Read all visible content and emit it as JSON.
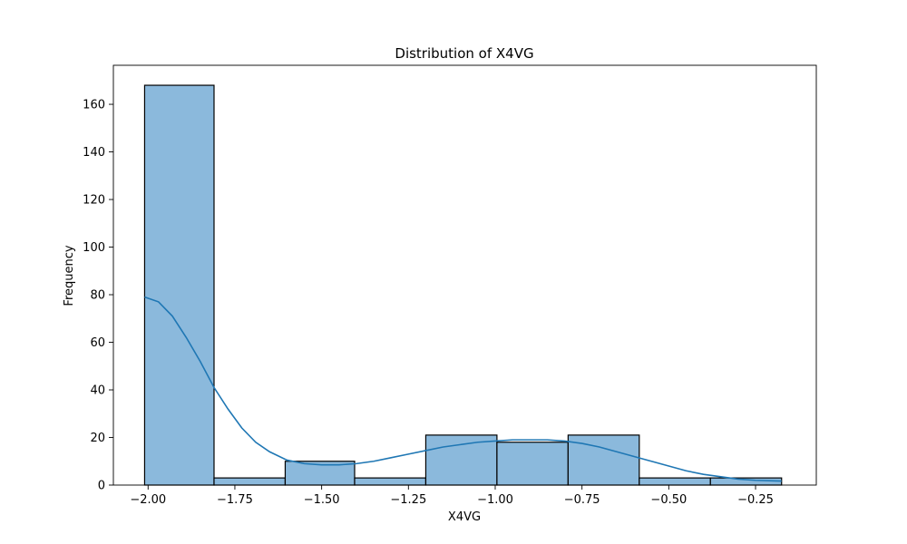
{
  "chart_data": {
    "type": "bar",
    "subtype": "histogram-with-kde",
    "title": "Distribution of X4VG",
    "xlabel": "X4VG",
    "ylabel": "Frequency",
    "xlim": [
      -2.1,
      -0.075
    ],
    "ylim": [
      0,
      176.4
    ],
    "x_ticks": [
      -2.0,
      -1.75,
      -1.5,
      -1.25,
      -1.0,
      -0.75,
      -0.5,
      -0.25
    ],
    "x_tick_labels": [
      "−2.00",
      "−1.75",
      "−1.50",
      "−1.25",
      "−1.00",
      "−0.75",
      "−0.50",
      "−0.25"
    ],
    "y_ticks": [
      0,
      20,
      40,
      60,
      80,
      100,
      120,
      140,
      160
    ],
    "y_tick_labels": [
      "0",
      "20",
      "40",
      "60",
      "80",
      "100",
      "120",
      "140",
      "160"
    ],
    "bins": [
      {
        "x0": -2.01,
        "x1": -1.81,
        "count": 168
      },
      {
        "x0": -1.81,
        "x1": -1.605,
        "count": 3
      },
      {
        "x0": -1.605,
        "x1": -1.405,
        "count": 10
      },
      {
        "x0": -1.405,
        "x1": -1.2,
        "count": 3
      },
      {
        "x0": -1.2,
        "x1": -0.995,
        "count": 21
      },
      {
        "x0": -0.995,
        "x1": -0.79,
        "count": 18
      },
      {
        "x0": -0.79,
        "x1": -0.585,
        "count": 21
      },
      {
        "x0": -0.585,
        "x1": -0.38,
        "count": 3
      },
      {
        "x0": -0.38,
        "x1": -0.175,
        "count": 3
      }
    ],
    "kde": {
      "x": [
        -2.01,
        -1.97,
        -1.93,
        -1.89,
        -1.85,
        -1.81,
        -1.77,
        -1.73,
        -1.69,
        -1.65,
        -1.6,
        -1.55,
        -1.5,
        -1.45,
        -1.4,
        -1.35,
        -1.3,
        -1.25,
        -1.2,
        -1.15,
        -1.1,
        -1.05,
        -1.0,
        -0.95,
        -0.9,
        -0.85,
        -0.8,
        -0.75,
        -0.7,
        -0.65,
        -0.6,
        -0.55,
        -0.5,
        -0.45,
        -0.4,
        -0.35,
        -0.3,
        -0.25,
        -0.2,
        -0.175
      ],
      "y": [
        79,
        77,
        71,
        62,
        52,
        41,
        32,
        24,
        18,
        14,
        10.5,
        9,
        8.5,
        8.5,
        9,
        10,
        11.5,
        13,
        14.5,
        16,
        17,
        18,
        18.5,
        19,
        19,
        19,
        18.5,
        17.5,
        16,
        14,
        12,
        10,
        8,
        6,
        4.5,
        3.5,
        2.5,
        2,
        1.8,
        1.7
      ]
    },
    "colors": {
      "bar_fill": "#8bb9dc",
      "bar_edge": "#000000",
      "kde_line": "#1f77b4"
    },
    "grid": false,
    "legend": "none"
  }
}
